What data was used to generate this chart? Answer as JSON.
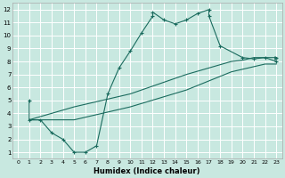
{
  "xlabel": "Humidex (Indice chaleur)",
  "bg_color": "#c8e8e0",
  "grid_color": "#ffffff",
  "line_color": "#1a6b5e",
  "xlim": [
    -0.5,
    23.5
  ],
  "ylim": [
    0.5,
    12.5
  ],
  "xticks": [
    0,
    1,
    2,
    3,
    4,
    5,
    6,
    7,
    8,
    9,
    10,
    11,
    12,
    13,
    14,
    15,
    16,
    17,
    18,
    19,
    20,
    21,
    22,
    23
  ],
  "yticks": [
    1,
    2,
    3,
    4,
    5,
    6,
    7,
    8,
    9,
    10,
    11,
    12
  ],
  "curve_x": [
    1,
    1,
    2,
    3,
    4,
    5,
    6,
    7,
    8,
    9,
    10,
    11,
    12,
    12,
    13,
    14,
    15,
    16,
    17,
    17,
    18,
    20,
    21,
    22,
    23
  ],
  "curve_y": [
    5.0,
    3.5,
    3.5,
    2.5,
    2.0,
    1.0,
    1.0,
    1.5,
    5.5,
    7.5,
    8.8,
    10.2,
    11.5,
    11.8,
    11.2,
    10.9,
    11.2,
    11.7,
    12.0,
    11.5,
    9.2,
    8.3,
    8.2,
    8.3,
    8.0
  ],
  "line_upper_x": [
    1,
    5,
    10,
    15,
    19,
    20,
    21,
    22,
    23
  ],
  "line_upper_y": [
    3.5,
    4.5,
    5.5,
    7.0,
    8.0,
    8.1,
    8.3,
    8.3,
    8.3
  ],
  "line_lower_x": [
    1,
    5,
    10,
    15,
    19,
    20,
    21,
    22,
    23
  ],
  "line_lower_y": [
    3.5,
    3.5,
    4.5,
    5.8,
    7.2,
    7.4,
    7.6,
    7.8,
    7.8
  ]
}
